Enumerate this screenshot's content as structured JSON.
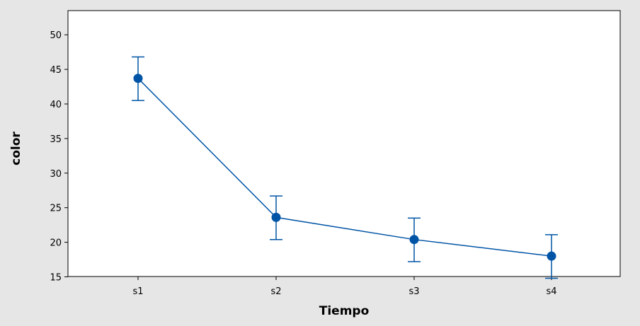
{
  "chart_data": {
    "type": "line",
    "title": "",
    "xlabel": "Tiempo",
    "ylabel": "color",
    "categories": [
      "s1",
      "s2",
      "s3",
      "s4"
    ],
    "series": [
      {
        "values": [
          43.7,
          23.6,
          20.4,
          18.0
        ],
        "error_low": [
          40.5,
          20.4,
          17.2,
          14.8
        ],
        "error_high": [
          46.8,
          26.7,
          23.5,
          21.1
        ]
      }
    ],
    "ylim": [
      13,
      51
    ],
    "yticks": [
      15,
      20,
      25,
      30,
      35,
      40,
      45,
      50
    ],
    "grid": false,
    "legend": "none",
    "colors": {
      "series": "#0054A6",
      "outer_background": "#E6E6E6",
      "plot_background": "#FFFFFF",
      "axis": "#000000"
    }
  }
}
